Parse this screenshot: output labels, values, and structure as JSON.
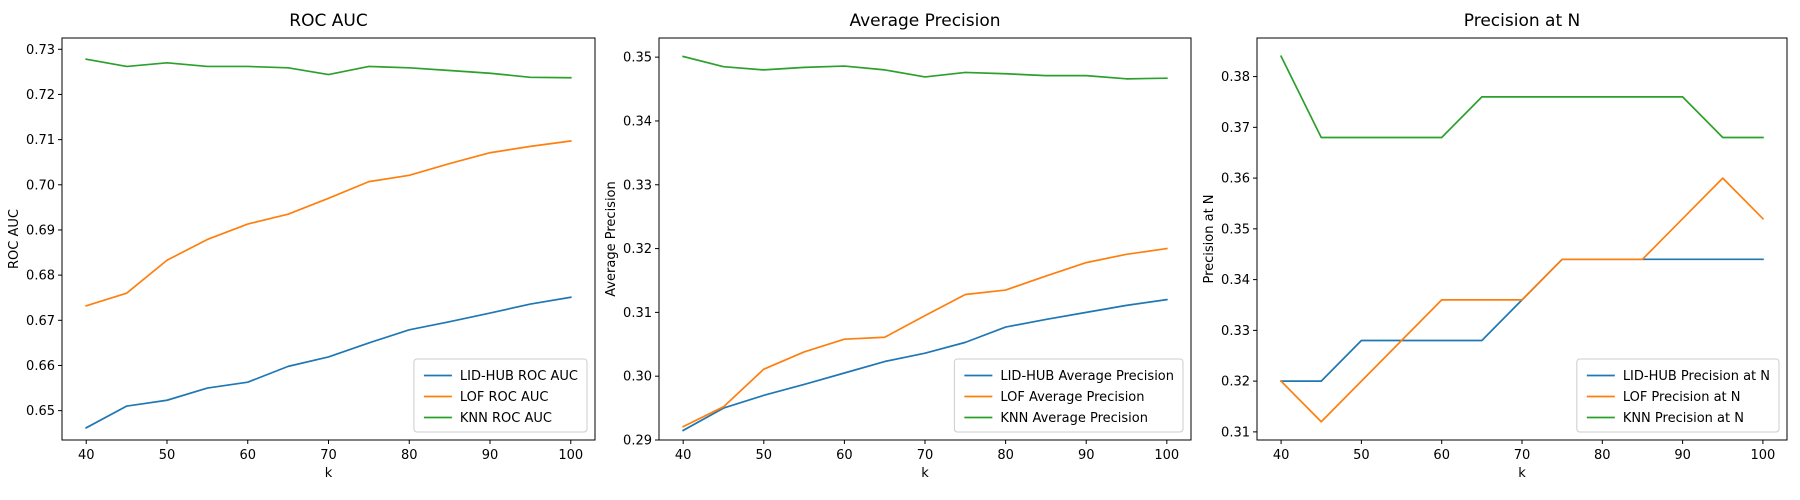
{
  "chart_data": [
    {
      "type": "line",
      "title": "ROC AUC",
      "xlabel": "k",
      "ylabel": "ROC AUC",
      "xlim": [
        37,
        103
      ],
      "ylim": [
        0.6435,
        0.7325
      ],
      "xticks": [
        40,
        50,
        60,
        70,
        80,
        90,
        100
      ],
      "yticks": [
        0.65,
        0.66,
        0.67,
        0.68,
        0.69,
        0.7,
        0.71,
        0.72,
        0.73
      ],
      "ytick_labels": [
        "0.65",
        "0.66",
        "0.67",
        "0.68",
        "0.69",
        "0.70",
        "0.71",
        "0.72",
        "0.73"
      ],
      "legend_position": "lower-right",
      "x": [
        40,
        45,
        50,
        55,
        60,
        65,
        70,
        75,
        80,
        85,
        90,
        95,
        100
      ],
      "series": [
        {
          "name": "LID-HUB ROC AUC",
          "color": "#1f77b4",
          "values": [
            0.6462,
            0.651,
            0.6523,
            0.655,
            0.6563,
            0.6598,
            0.6619,
            0.665,
            0.6679,
            0.6697,
            0.6716,
            0.6736,
            0.6751
          ]
        },
        {
          "name": "LOF ROC AUC",
          "color": "#ff7f0e",
          "values": [
            0.6732,
            0.676,
            0.6833,
            0.6879,
            0.6913,
            0.6935,
            0.697,
            0.7007,
            0.7021,
            0.7047,
            0.7071,
            0.7085,
            0.7097
          ]
        },
        {
          "name": "KNN ROC AUC",
          "color": "#2ca02c",
          "values": [
            0.7278,
            0.7262,
            0.727,
            0.7262,
            0.7262,
            0.7259,
            0.7244,
            0.7262,
            0.7259,
            0.7253,
            0.7247,
            0.7238,
            0.7237
          ]
        }
      ]
    },
    {
      "type": "line",
      "title": "Average Precision",
      "xlabel": "k",
      "ylabel": "Average Precision",
      "xlim": [
        37,
        103
      ],
      "ylim": [
        0.29,
        0.353
      ],
      "xticks": [
        40,
        50,
        60,
        70,
        80,
        90,
        100
      ],
      "yticks": [
        0.29,
        0.3,
        0.31,
        0.32,
        0.33,
        0.34,
        0.35
      ],
      "ytick_labels": [
        "0.29",
        "0.30",
        "0.31",
        "0.32",
        "0.33",
        "0.34",
        "0.35"
      ],
      "legend_position": "lower-right",
      "x": [
        40,
        45,
        50,
        55,
        60,
        65,
        70,
        75,
        80,
        85,
        90,
        95,
        100
      ],
      "series": [
        {
          "name": "LID-HUB Average Precision",
          "color": "#1f77b4",
          "values": [
            0.2915,
            0.295,
            0.297,
            0.2987,
            0.3005,
            0.3023,
            0.3036,
            0.3053,
            0.3077,
            0.3089,
            0.31,
            0.3111,
            0.312
          ]
        },
        {
          "name": "LOF Average Precision",
          "color": "#ff7f0e",
          "values": [
            0.2921,
            0.2952,
            0.3011,
            0.3038,
            0.3058,
            0.3061,
            0.3095,
            0.3128,
            0.3135,
            0.3157,
            0.3178,
            0.3191,
            0.32
          ]
        },
        {
          "name": "KNN Average Precision",
          "color": "#2ca02c",
          "values": [
            0.3501,
            0.3485,
            0.348,
            0.3484,
            0.3486,
            0.348,
            0.3469,
            0.3476,
            0.3474,
            0.3471,
            0.3471,
            0.3466,
            0.3467
          ]
        }
      ]
    },
    {
      "type": "line",
      "title": "Precision at N",
      "xlabel": "k",
      "ylabel": "Precision at N",
      "xlim": [
        37,
        103
      ],
      "ylim": [
        0.3084,
        0.3876
      ],
      "xticks": [
        40,
        50,
        60,
        70,
        80,
        90,
        100
      ],
      "yticks": [
        0.31,
        0.32,
        0.33,
        0.34,
        0.35,
        0.36,
        0.37,
        0.38
      ],
      "ytick_labels": [
        "0.31",
        "0.32",
        "0.33",
        "0.34",
        "0.35",
        "0.36",
        "0.37",
        "0.38"
      ],
      "legend_position": "lower-right",
      "x": [
        40,
        45,
        50,
        55,
        60,
        65,
        70,
        75,
        80,
        85,
        90,
        95,
        100
      ],
      "series": [
        {
          "name": "LID-HUB Precision at N",
          "color": "#1f77b4",
          "values": [
            0.32,
            0.32,
            0.328,
            0.328,
            0.328,
            0.328,
            0.336,
            0.344,
            0.344,
            0.344,
            0.344,
            0.344,
            0.344
          ]
        },
        {
          "name": "LOF Precision at N",
          "color": "#ff7f0e",
          "values": [
            0.32,
            0.312,
            0.32,
            0.328,
            0.336,
            0.336,
            0.336,
            0.344,
            0.344,
            0.344,
            0.352,
            0.36,
            0.352
          ]
        },
        {
          "name": "KNN Precision at N",
          "color": "#2ca02c",
          "values": [
            0.384,
            0.368,
            0.368,
            0.368,
            0.368,
            0.376,
            0.376,
            0.376,
            0.376,
            0.376,
            0.376,
            0.368,
            0.368
          ]
        }
      ]
    }
  ]
}
